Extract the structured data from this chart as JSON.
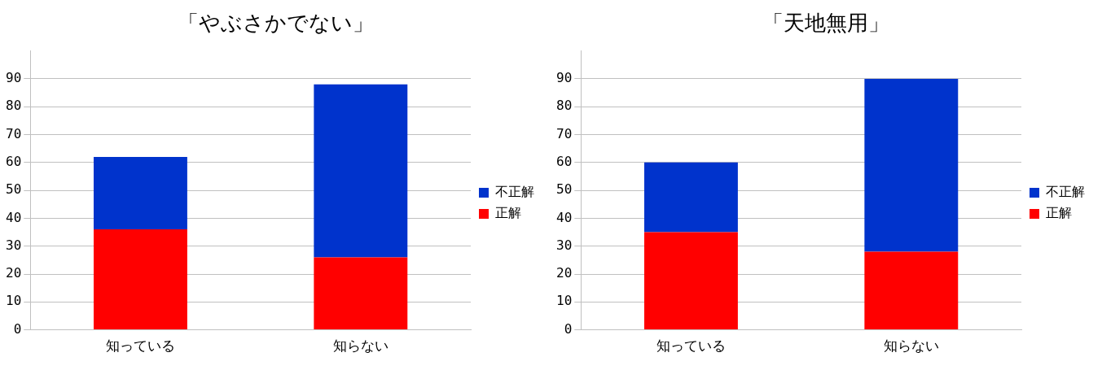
{
  "chart_data": [
    {
      "type": "bar",
      "title": "「やぶさかでない」",
      "categories": [
        "知っている",
        "知らない"
      ],
      "stacked": true,
      "ylim": [
        0,
        100
      ],
      "yticks": [
        0,
        10,
        20,
        30,
        40,
        50,
        60,
        70,
        80,
        90
      ],
      "grid": "y",
      "legend": "right",
      "series": [
        {
          "name": "正解",
          "color": "#ff0000",
          "values": [
            36,
            26
          ]
        },
        {
          "name": "不正解",
          "color": "#0033cc",
          "values": [
            26,
            62
          ]
        }
      ]
    },
    {
      "type": "bar",
      "title": "「天地無用」",
      "categories": [
        "知っている",
        "知らない"
      ],
      "stacked": true,
      "ylim": [
        0,
        100
      ],
      "yticks": [
        0,
        10,
        20,
        30,
        40,
        50,
        60,
        70,
        80,
        90
      ],
      "grid": "y",
      "legend": "right",
      "series": [
        {
          "name": "正解",
          "color": "#ff0000",
          "values": [
            35,
            28
          ]
        },
        {
          "name": "不正解",
          "color": "#0033cc",
          "values": [
            25,
            62
          ]
        }
      ]
    }
  ]
}
